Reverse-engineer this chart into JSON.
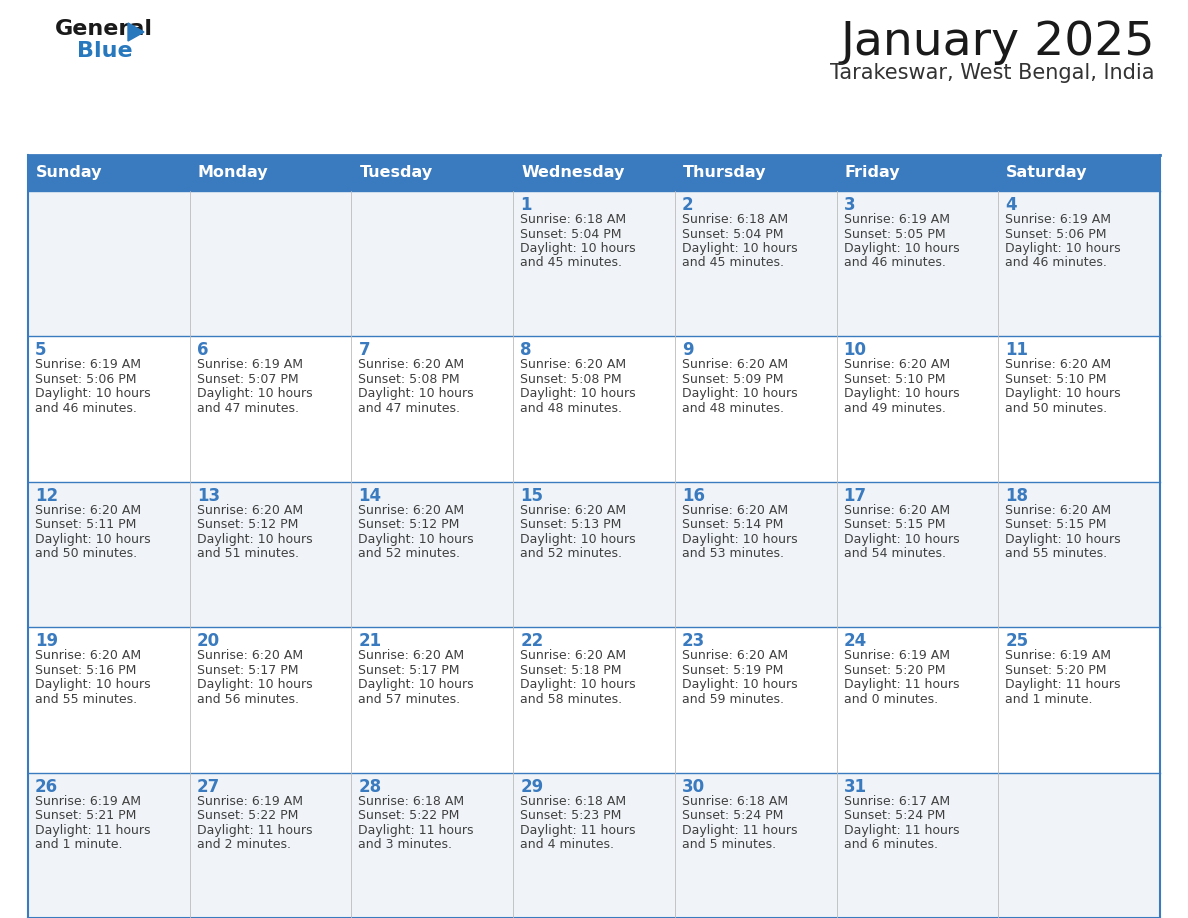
{
  "title": "January 2025",
  "subtitle": "Tarakeswar, West Bengal, India",
  "header_bg_color": "#3a7abf",
  "header_text_color": "#ffffff",
  "day_names": [
    "Sunday",
    "Monday",
    "Tuesday",
    "Wednesday",
    "Thursday",
    "Friday",
    "Saturday"
  ],
  "row_colors": [
    "#f0f4f8",
    "#ffffff",
    "#f0f4f8",
    "#ffffff",
    "#f0f4f8"
  ],
  "border_color": "#3a7abf",
  "cell_border_color": "#3a7abf",
  "date_color": "#3a7abf",
  "text_color": "#404040",
  "title_color": "#1a1a1a",
  "subtitle_color": "#333333",
  "logo_general_color": "#1a1a1a",
  "logo_blue_color": "#2878be",
  "weeks": [
    {
      "days": [
        {
          "date": "",
          "sunrise": "",
          "sunset": "",
          "daylight": ""
        },
        {
          "date": "",
          "sunrise": "",
          "sunset": "",
          "daylight": ""
        },
        {
          "date": "",
          "sunrise": "",
          "sunset": "",
          "daylight": ""
        },
        {
          "date": "1",
          "sunrise": "6:18 AM",
          "sunset": "5:04 PM",
          "daylight": "10 hours and 45 minutes."
        },
        {
          "date": "2",
          "sunrise": "6:18 AM",
          "sunset": "5:04 PM",
          "daylight": "10 hours and 45 minutes."
        },
        {
          "date": "3",
          "sunrise": "6:19 AM",
          "sunset": "5:05 PM",
          "daylight": "10 hours and 46 minutes."
        },
        {
          "date": "4",
          "sunrise": "6:19 AM",
          "sunset": "5:06 PM",
          "daylight": "10 hours and 46 minutes."
        }
      ]
    },
    {
      "days": [
        {
          "date": "5",
          "sunrise": "6:19 AM",
          "sunset": "5:06 PM",
          "daylight": "10 hours and 46 minutes."
        },
        {
          "date": "6",
          "sunrise": "6:19 AM",
          "sunset": "5:07 PM",
          "daylight": "10 hours and 47 minutes."
        },
        {
          "date": "7",
          "sunrise": "6:20 AM",
          "sunset": "5:08 PM",
          "daylight": "10 hours and 47 minutes."
        },
        {
          "date": "8",
          "sunrise": "6:20 AM",
          "sunset": "5:08 PM",
          "daylight": "10 hours and 48 minutes."
        },
        {
          "date": "9",
          "sunrise": "6:20 AM",
          "sunset": "5:09 PM",
          "daylight": "10 hours and 48 minutes."
        },
        {
          "date": "10",
          "sunrise": "6:20 AM",
          "sunset": "5:10 PM",
          "daylight": "10 hours and 49 minutes."
        },
        {
          "date": "11",
          "sunrise": "6:20 AM",
          "sunset": "5:10 PM",
          "daylight": "10 hours and 50 minutes."
        }
      ]
    },
    {
      "days": [
        {
          "date": "12",
          "sunrise": "6:20 AM",
          "sunset": "5:11 PM",
          "daylight": "10 hours and 50 minutes."
        },
        {
          "date": "13",
          "sunrise": "6:20 AM",
          "sunset": "5:12 PM",
          "daylight": "10 hours and 51 minutes."
        },
        {
          "date": "14",
          "sunrise": "6:20 AM",
          "sunset": "5:12 PM",
          "daylight": "10 hours and 52 minutes."
        },
        {
          "date": "15",
          "sunrise": "6:20 AM",
          "sunset": "5:13 PM",
          "daylight": "10 hours and 52 minutes."
        },
        {
          "date": "16",
          "sunrise": "6:20 AM",
          "sunset": "5:14 PM",
          "daylight": "10 hours and 53 minutes."
        },
        {
          "date": "17",
          "sunrise": "6:20 AM",
          "sunset": "5:15 PM",
          "daylight": "10 hours and 54 minutes."
        },
        {
          "date": "18",
          "sunrise": "6:20 AM",
          "sunset": "5:15 PM",
          "daylight": "10 hours and 55 minutes."
        }
      ]
    },
    {
      "days": [
        {
          "date": "19",
          "sunrise": "6:20 AM",
          "sunset": "5:16 PM",
          "daylight": "10 hours and 55 minutes."
        },
        {
          "date": "20",
          "sunrise": "6:20 AM",
          "sunset": "5:17 PM",
          "daylight": "10 hours and 56 minutes."
        },
        {
          "date": "21",
          "sunrise": "6:20 AM",
          "sunset": "5:17 PM",
          "daylight": "10 hours and 57 minutes."
        },
        {
          "date": "22",
          "sunrise": "6:20 AM",
          "sunset": "5:18 PM",
          "daylight": "10 hours and 58 minutes."
        },
        {
          "date": "23",
          "sunrise": "6:20 AM",
          "sunset": "5:19 PM",
          "daylight": "10 hours and 59 minutes."
        },
        {
          "date": "24",
          "sunrise": "6:19 AM",
          "sunset": "5:20 PM",
          "daylight": "11 hours and 0 minutes."
        },
        {
          "date": "25",
          "sunrise": "6:19 AM",
          "sunset": "5:20 PM",
          "daylight": "11 hours and 1 minute."
        }
      ]
    },
    {
      "days": [
        {
          "date": "26",
          "sunrise": "6:19 AM",
          "sunset": "5:21 PM",
          "daylight": "11 hours and 1 minute."
        },
        {
          "date": "27",
          "sunrise": "6:19 AM",
          "sunset": "5:22 PM",
          "daylight": "11 hours and 2 minutes."
        },
        {
          "date": "28",
          "sunrise": "6:18 AM",
          "sunset": "5:22 PM",
          "daylight": "11 hours and 3 minutes."
        },
        {
          "date": "29",
          "sunrise": "6:18 AM",
          "sunset": "5:23 PM",
          "daylight": "11 hours and 4 minutes."
        },
        {
          "date": "30",
          "sunrise": "6:18 AM",
          "sunset": "5:24 PM",
          "daylight": "11 hours and 5 minutes."
        },
        {
          "date": "31",
          "sunrise": "6:17 AM",
          "sunset": "5:24 PM",
          "daylight": "11 hours and 6 minutes."
        },
        {
          "date": "",
          "sunrise": "",
          "sunset": "",
          "daylight": ""
        }
      ]
    }
  ]
}
